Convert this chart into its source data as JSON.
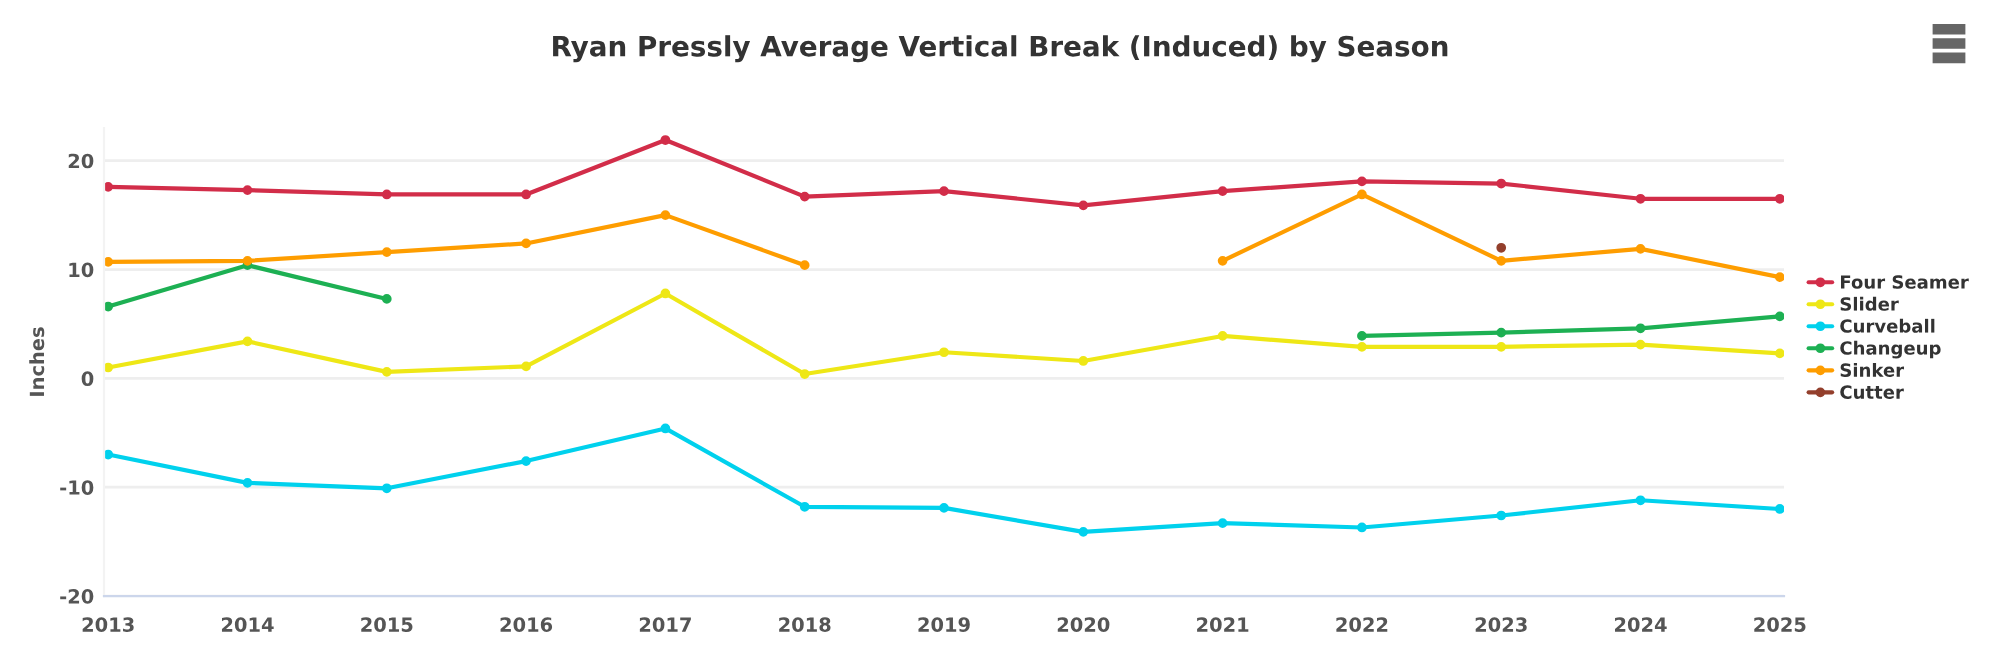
{
  "chart_data": {
    "type": "line",
    "title": "Ryan Pressly Average Vertical Break (Induced) by Season",
    "ylabel": "Inches",
    "categories": [
      "2013",
      "2014",
      "2015",
      "2016",
      "2017",
      "2018",
      "2019",
      "2020",
      "2021",
      "2022",
      "2023",
      "2024",
      "2025"
    ],
    "series": [
      {
        "name": "Four Seamer",
        "color": "#d22d49",
        "values": [
          17.6,
          17.3,
          16.9,
          16.9,
          21.9,
          16.7,
          17.2,
          15.9,
          17.2,
          18.1,
          17.9,
          16.5,
          16.5
        ]
      },
      {
        "name": "Slider",
        "color": "#eee716",
        "values": [
          1.0,
          3.4,
          0.6,
          1.1,
          7.8,
          0.4,
          2.4,
          1.6,
          3.9,
          2.9,
          2.9,
          3.1,
          2.3
        ]
      },
      {
        "name": "Curveball",
        "color": "#00d1ed",
        "values": [
          -7.0,
          -9.6,
          -10.1,
          -7.6,
          -4.6,
          -11.8,
          -11.9,
          -14.1,
          -13.3,
          -13.7,
          -12.6,
          -11.2,
          -12.0
        ]
      },
      {
        "name": "Changeup",
        "color": "#1db053",
        "values": [
          6.6,
          10.4,
          7.3,
          null,
          null,
          null,
          null,
          null,
          null,
          3.9,
          4.2,
          4.6,
          5.7
        ]
      },
      {
        "name": "Sinker",
        "color": "#fe9d00",
        "values": [
          10.7,
          10.8,
          11.6,
          12.4,
          15.0,
          10.4,
          null,
          null,
          10.8,
          16.9,
          10.8,
          11.9,
          9.3
        ]
      },
      {
        "name": "Cutter",
        "color": "#933f2c",
        "values": [
          null,
          null,
          null,
          null,
          null,
          null,
          null,
          null,
          null,
          null,
          12.0,
          null,
          null
        ]
      }
    ],
    "ylim": [
      -20,
      23
    ],
    "yticks": [
      -20,
      -10,
      0,
      10,
      20
    ],
    "grid": "y",
    "legend": "right",
    "marker": "circle",
    "line_style": "solid"
  }
}
